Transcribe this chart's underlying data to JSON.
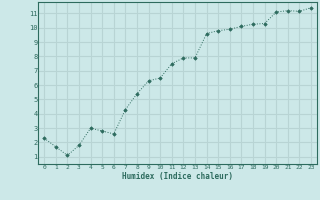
{
  "x": [
    0,
    1,
    2,
    3,
    4,
    5,
    6,
    7,
    8,
    9,
    10,
    11,
    12,
    13,
    14,
    15,
    16,
    17,
    18,
    19,
    20,
    21,
    22,
    23
  ],
  "y": [
    2.3,
    1.7,
    1.1,
    1.8,
    3.0,
    2.8,
    2.6,
    4.3,
    5.4,
    6.3,
    6.5,
    7.5,
    7.9,
    7.9,
    9.6,
    9.8,
    9.9,
    10.1,
    10.25,
    10.3,
    11.1,
    11.2,
    11.15,
    11.4
  ],
  "xlim": [
    -0.5,
    23.5
  ],
  "ylim": [
    0.5,
    11.8
  ],
  "xticks": [
    0,
    1,
    2,
    3,
    4,
    5,
    6,
    7,
    8,
    9,
    10,
    11,
    12,
    13,
    14,
    15,
    16,
    17,
    18,
    19,
    20,
    21,
    22,
    23
  ],
  "yticks": [
    1,
    2,
    3,
    4,
    5,
    6,
    7,
    8,
    9,
    10,
    11
  ],
  "xlabel": "Humidex (Indice chaleur)",
  "line_color": "#2d6b5e",
  "marker": "D",
  "marker_size": 1.8,
  "bg_color": "#cce8e8",
  "grid_color": "#b8d4d4",
  "tick_color": "#2d6b5e",
  "label_color": "#2d6b5e",
  "font_family": "monospace"
}
